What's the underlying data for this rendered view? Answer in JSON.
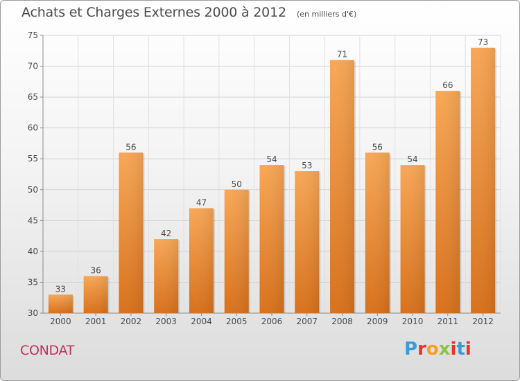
{
  "header": {
    "title": "Achats et Charges Externes 2000 à 2012",
    "unit": "(en milliers d'€)"
  },
  "footer": {
    "commune": "CONDAT",
    "logo_text": "Proxiti",
    "logo_colors": [
      "#3a9bd8",
      "#e8342a",
      "#f2a21b",
      "#8cc63f",
      "#e8342a",
      "#3a9bd8",
      "#e8342a"
    ]
  },
  "chart_data": {
    "type": "bar",
    "categories": [
      "2000",
      "2001",
      "2002",
      "2003",
      "2004",
      "2005",
      "2006",
      "2007",
      "2008",
      "2009",
      "2010",
      "2011",
      "2012"
    ],
    "values": [
      33,
      36,
      56,
      42,
      47,
      50,
      54,
      53,
      71,
      56,
      54,
      66,
      73
    ],
    "title": "Achats et Charges Externes 2000 à 2012",
    "subtitle": "(en milliers d'€)",
    "xlabel": "",
    "ylabel": "",
    "ylim": [
      30,
      75
    ],
    "yticks": [
      30,
      35,
      40,
      45,
      50,
      55,
      60,
      65,
      70,
      75
    ],
    "grid": true,
    "bar_color": "#ef8c35",
    "data_labels": true
  }
}
